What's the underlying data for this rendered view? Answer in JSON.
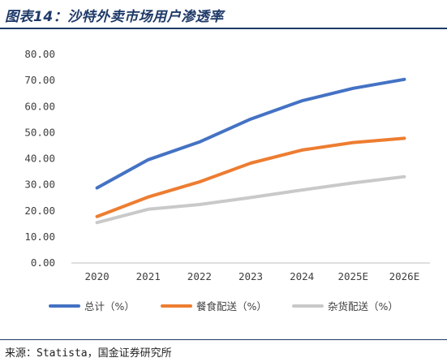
{
  "title": "图表14：沙特外卖市场用户渗透率",
  "source": "来源：Statista，国金证券研究所",
  "chart_data": {
    "type": "line",
    "title": "",
    "xlabel": "",
    "ylabel": "",
    "ylim": [
      0,
      80
    ],
    "y_ticks": [
      "0.00",
      "10.00",
      "20.00",
      "30.00",
      "40.00",
      "50.00",
      "60.00",
      "70.00",
      "80.00"
    ],
    "categories": [
      "2020",
      "2021",
      "2022",
      "2023",
      "2024",
      "2025E",
      "2026E"
    ],
    "grid": false,
    "legend_position": "bottom",
    "series": [
      {
        "name": "总计（%）",
        "color": "#4472c4",
        "values": [
          28.8,
          39.6,
          46.4,
          55.2,
          62.2,
          67.0,
          70.4
        ]
      },
      {
        "name": "餐食配送（%）",
        "color": "#ed7d31",
        "values": [
          17.8,
          25.3,
          31.1,
          38.3,
          43.3,
          46.2,
          47.8
        ]
      },
      {
        "name": "杂货配送（%）",
        "color": "#c9c9c9",
        "values": [
          15.5,
          20.6,
          22.4,
          25.1,
          28.0,
          30.7,
          33.1
        ]
      }
    ]
  }
}
